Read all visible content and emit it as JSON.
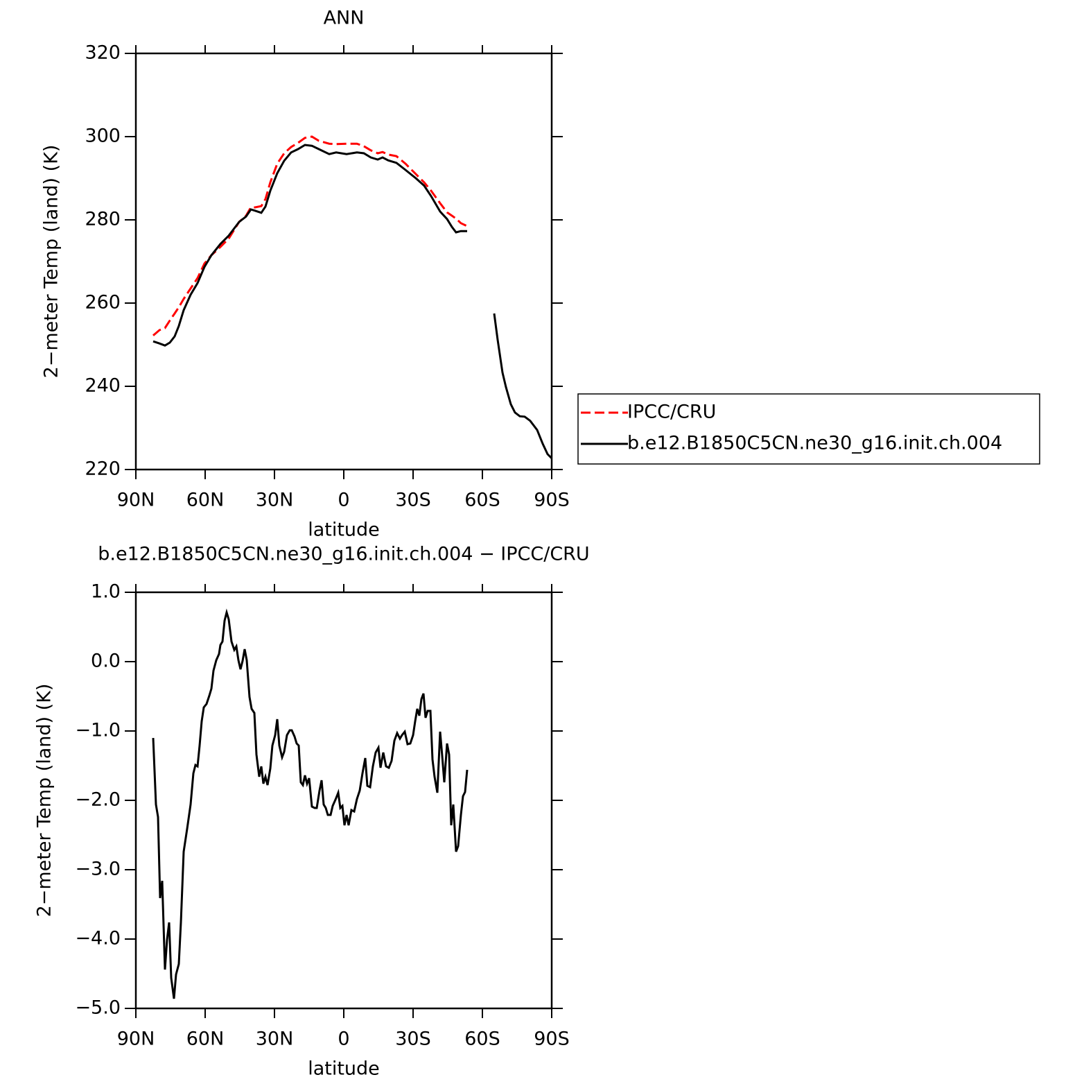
{
  "chart_data": [
    {
      "type": "line",
      "title": "ANN",
      "x_label": "latitude",
      "y_label": "2−meter Temp (land) (K)",
      "x": [
        82.5,
        79.8,
        77.4,
        75.3,
        73.2,
        71.4,
        69.3,
        66.3,
        63.3,
        60.3,
        57.3,
        53.4,
        49.8,
        45.3,
        42.3,
        40.2,
        38.4,
        35.7,
        33.9,
        31.8,
        28.8,
        25.8,
        22.8,
        19.8,
        16.8,
        13.8,
        10.8,
        6.3,
        3.3,
        -1.2,
        -5.7,
        -8.7,
        -11.7,
        -14.7,
        -16.8,
        -19.2,
        -22.8,
        -26.7,
        -31.2,
        -34.8,
        -37.8,
        -41.7,
        -44.7,
        -46.8,
        -48.6,
        -50.7,
        -53.4,
        -59,
        -65.1,
        -66.6,
        -68.7,
        -70.2,
        -72.3,
        -74.1,
        -76.2,
        -78.3,
        -80.7,
        -83.7,
        -86.1,
        -88.2,
        -90
      ],
      "series": [
        {
          "name": "IPCC/CRU",
          "color": "#ff0000",
          "dash": "dashed",
          "values": [
            252.2,
            253.5,
            254,
            255.8,
            257.5,
            259,
            261,
            263.5,
            266,
            269.5,
            271.5,
            273.5,
            275.5,
            279.5,
            281,
            283,
            283,
            283.3,
            285,
            289,
            293.5,
            296,
            297.5,
            298.5,
            299.7,
            300,
            299,
            298.3,
            298.2,
            298.3,
            298.3,
            297.7,
            296.7,
            296,
            296.3,
            295.7,
            295.3,
            293.5,
            291,
            289,
            287,
            284,
            281.8,
            281,
            280.3,
            279.2,
            278.5,
            null,
            null,
            null,
            null,
            null,
            null,
            null,
            null,
            null,
            null,
            null,
            null,
            null,
            null
          ]
        },
        {
          "name": "b.e12.B1850C5CN.ne30_g16.init.ch.004",
          "color": "#000000",
          "dash": "solid",
          "values": [
            250.8,
            250.3,
            249.8,
            250.5,
            252,
            254.5,
            258.3,
            262,
            264.8,
            268.7,
            271.5,
            274.2,
            276.2,
            279.5,
            280.8,
            282.5,
            282.2,
            281.7,
            283.2,
            287,
            291.2,
            294.2,
            296.2,
            297,
            298,
            297.8,
            297,
            295.8,
            296.2,
            295.8,
            296.2,
            296,
            295,
            294.5,
            295,
            294.3,
            293.7,
            292,
            290,
            288.2,
            285.7,
            282,
            280.2,
            278.3,
            277,
            277.3,
            277.3,
            null,
            257.5,
            251.2,
            243.3,
            239.8,
            235.7,
            233.7,
            232.8,
            232.7,
            231.7,
            229.5,
            226.2,
            223.7,
            222.7
          ]
        }
      ],
      "xlim": [
        90,
        -90
      ],
      "xticks": [
        {
          "value": 90,
          "label": "90N"
        },
        {
          "value": 60,
          "label": "60N"
        },
        {
          "value": 30,
          "label": "30N"
        },
        0,
        {
          "value": -30,
          "label": "30S"
        },
        {
          "value": -60,
          "label": "60S"
        },
        {
          "value": -90,
          "label": "90S"
        }
      ],
      "ylim": [
        220,
        320
      ],
      "yticks": [
        220,
        240,
        260,
        280,
        300,
        320
      ],
      "legend": "right"
    },
    {
      "type": "line",
      "title": "b.e12.B1850C5CN.ne30_g16.init.ch.004 − IPCC/CRU",
      "x_label": "latitude",
      "y_label": "2−meter Temp (land) (K)",
      "x": [
        82.5,
        81.3,
        80.4,
        79.5,
        78.6,
        77.4,
        76.5,
        75.6,
        74.7,
        73.5,
        72.6,
        71.4,
        70.5,
        69.3,
        67.8,
        66.3,
        65.1,
        64.2,
        63.3,
        62.4,
        61.5,
        60.6,
        59.4,
        58.2,
        57.3,
        56.4,
        55.2,
        54,
        53.4,
        52.5,
        51.6,
        50.7,
        49.8,
        48.6,
        47.4,
        46.5,
        45.6,
        44.7,
        43.8,
        42.9,
        42,
        40.8,
        39.9,
        38.7,
        37.8,
        36.6,
        35.7,
        34.8,
        33.9,
        33,
        31.8,
        30.9,
        29.7,
        28.8,
        27.9,
        26.7,
        25.8,
        24.6,
        23.4,
        22.5,
        21.3,
        20.4,
        19.5,
        18.6,
        17.7,
        16.8,
        15.9,
        15,
        13.8,
        12.6,
        11.7,
        10.5,
        9.6,
        8.7,
        7.8,
        6.9,
        5.7,
        4.8,
        3.6,
        2.4,
        1.5,
        0.6,
        -0.3,
        -1.2,
        -2.1,
        -3.3,
        -4.5,
        -5.7,
        -6.9,
        -8.1,
        -9.3,
        -10.2,
        -11.4,
        -12.6,
        -13.8,
        -15,
        -15.9,
        -17.1,
        -18.3,
        -19.5,
        -20.7,
        -21.9,
        -23.1,
        -24.3,
        -25.2,
        -26.4,
        -27.6,
        -28.8,
        -30,
        -30.9,
        -31.8,
        -32.7,
        -33.6,
        -34.5,
        -35.4,
        -36.3,
        -37.5,
        -38.4,
        -39.3,
        -40.5,
        -41.7,
        -42.6,
        -43.5,
        -44.7,
        -45.6,
        -46.5,
        -47.4,
        -48.6,
        -49.5,
        -50.7,
        -51.6,
        -52.5,
        -53.4
      ],
      "color": "#000000",
      "values": [
        -1.1,
        -2.06,
        -2.24,
        -3.41,
        -3.16,
        -4.44,
        -4.01,
        -3.76,
        -4.56,
        -4.86,
        -4.51,
        -4.36,
        -3.76,
        -2.74,
        -2.41,
        -2.06,
        -1.61,
        -1.49,
        -1.51,
        -1.21,
        -0.86,
        -0.66,
        -0.61,
        -0.49,
        -0.39,
        -0.13,
        0.02,
        0.11,
        0.24,
        0.29,
        0.59,
        0.71,
        0.61,
        0.29,
        0.17,
        0.22,
        0.02,
        -0.11,
        0.01,
        0.18,
        0.02,
        -0.51,
        -0.68,
        -0.74,
        -1.34,
        -1.66,
        -1.51,
        -1.76,
        -1.66,
        -1.78,
        -1.54,
        -1.21,
        -1.06,
        -0.83,
        -1.21,
        -1.38,
        -1.3,
        -1.06,
        -0.99,
        -0.99,
        -1.08,
        -1.18,
        -1.21,
        -1.74,
        -1.78,
        -1.64,
        -1.76,
        -1.68,
        -2.09,
        -2.11,
        -2.11,
        -1.86,
        -1.71,
        -2.06,
        -2.11,
        -2.21,
        -2.21,
        -2.08,
        -1.99,
        -1.89,
        -2.11,
        -2.08,
        -2.36,
        -2.21,
        -2.36,
        -2.14,
        -2.16,
        -1.98,
        -1.86,
        -1.61,
        -1.39,
        -1.79,
        -1.81,
        -1.51,
        -1.31,
        -1.24,
        -1.53,
        -1.31,
        -1.51,
        -1.53,
        -1.43,
        -1.14,
        -1.03,
        -1.11,
        -1.06,
        -1.01,
        -1.19,
        -1.18,
        -1.06,
        -0.86,
        -0.68,
        -0.78,
        -0.54,
        -0.46,
        -0.81,
        -0.71,
        -0.71,
        -1.41,
        -1.66,
        -1.89,
        -1.01,
        -1.36,
        -1.74,
        -1.18,
        -1.34,
        -2.36,
        -2.06,
        -2.74,
        -2.66,
        -2.21,
        -1.94,
        -1.88,
        -1.56
      ],
      "xlim": [
        90,
        -90
      ],
      "xticks": [
        {
          "value": 90,
          "label": "90N"
        },
        {
          "value": 60,
          "label": "60N"
        },
        {
          "value": 30,
          "label": "30N"
        },
        0,
        {
          "value": -30,
          "label": "30S"
        },
        {
          "value": -60,
          "label": "60S"
        },
        {
          "value": -90,
          "label": "90S"
        }
      ],
      "ylim": [
        -5,
        1
      ],
      "yticks": [
        {
          "value": -5,
          "label": "−5.0"
        },
        {
          "value": -4,
          "label": "−4.0"
        },
        {
          "value": -3,
          "label": "−3.0"
        },
        {
          "value": -2,
          "label": "−2.0"
        },
        {
          "value": -1,
          "label": "−1.0"
        },
        {
          "value": 0,
          "label": "0.0"
        },
        {
          "value": 1,
          "label": "1.0"
        }
      ]
    }
  ]
}
